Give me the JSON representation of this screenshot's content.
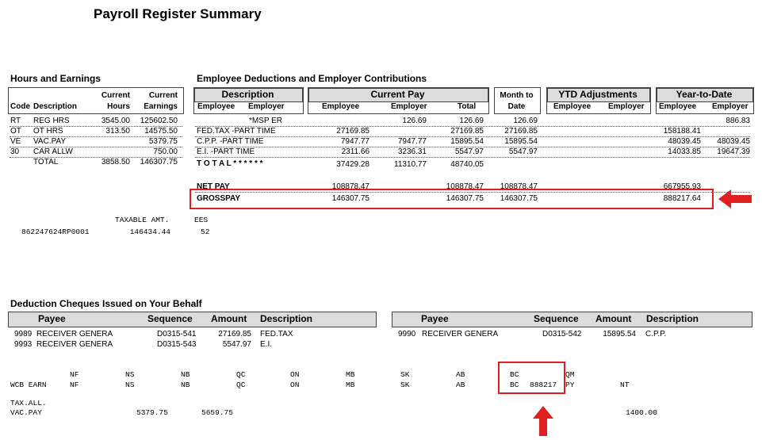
{
  "title": "Payroll Register Summary",
  "hours": {
    "heading": "Hours and Earnings",
    "col_current1": "Current",
    "col_current2": "Current",
    "col_code": "Code",
    "col_desc": "Description",
    "col_hours": "Hours",
    "col_earnings": "Earnings",
    "rows": [
      {
        "code": "RT",
        "desc": "REG HRS",
        "hours": "3545.00",
        "earn": "125602.50"
      },
      {
        "code": "OT",
        "desc": "OT HRS",
        "hours": "313.50",
        "earn": "14575.50"
      },
      {
        "code": "VE",
        "desc": "VAC.PAY",
        "hours": "",
        "earn": "5379.75"
      },
      {
        "code": "30",
        "desc": "CAR ALLW",
        "hours": "",
        "earn": "750.00"
      }
    ],
    "total": {
      "label": "TOTAL",
      "hours": "3858.50",
      "earn": "146307.75"
    }
  },
  "deductions": {
    "heading": "Employee Deductions and Employer Contributions",
    "desc_header": "Description",
    "desc_employee": "Employee",
    "desc_employer": "Employer",
    "current_pay": "Current Pay",
    "cp_employee": "Employee",
    "cp_employer": "Employer",
    "cp_total": "Total",
    "mtd1": "Month to",
    "mtd2": "Date",
    "ytd_adj": "YTD Adjustments",
    "ya_employee": "Employee",
    "ya_employer": "Employer",
    "ytd": "Year-to-Date",
    "ytd_employee": "Employee",
    "ytd_employer": "Employer",
    "rows": [
      {
        "desc": "*MSP ER",
        "emp": "",
        "er": "126.69",
        "total": "126.69",
        "mtd": "126.69",
        "ytd_emp": "",
        "ytd_er": "886.83"
      },
      {
        "desc": "FED.TAX -PART TIME",
        "emp": "27169.85",
        "er": "",
        "total": "27169.85",
        "mtd": "27169.85",
        "ytd_emp": "158188.41",
        "ytd_er": ""
      },
      {
        "desc": "C.P.P. -PART TIME",
        "emp": "7947.77",
        "er": "7947.77",
        "total": "15895.54",
        "mtd": "15895.54",
        "ytd_emp": "48039.45",
        "ytd_er": "48039.45"
      },
      {
        "desc": "E.I. -PART TIME",
        "emp": "2311.66",
        "er": "3236.31",
        "total": "5547.97",
        "mtd": "5547.97",
        "ytd_emp": "14033.85",
        "ytd_er": "19647.39"
      }
    ],
    "total": {
      "label": "T O T A L * * * * * *",
      "emp": "37429.28",
      "er": "11310.77",
      "total": "48740.05"
    },
    "netpay": {
      "label": "NET PAY",
      "emp": "108878.47",
      "total": "108878.47",
      "mtd": "108878.47",
      "ytd": "667955.93"
    },
    "grosspay": {
      "label": "GROSSPAY",
      "emp": "146307.75",
      "total": "146307.75",
      "mtd": "146307.75",
      "ytd": "888217.64"
    }
  },
  "taxable": {
    "label_amt": "TAXABLE AMT.",
    "label_ees": "EES",
    "account": "862247624RP0001",
    "amount": "146434.44",
    "ees": "52"
  },
  "cheques": {
    "heading": "Deduction Cheques Issued on Your Behalf",
    "left_headers": {
      "payee": "Payee",
      "sequence": "Sequence",
      "amount": "Amount",
      "description": "Description"
    },
    "right_headers": {
      "payee": "Payee",
      "sequence": "Sequence",
      "amount": "Amount",
      "description": "Description"
    },
    "left_rows": [
      {
        "code": "9989",
        "payee": "RECEIVER GENERA",
        "seq": "D0315-541",
        "amt": "27169.85",
        "desc": "FED.TAX"
      },
      {
        "code": "9993",
        "payee": "RECEIVER GENERA",
        "seq": "D0315-543",
        "amt": "5547.97",
        "desc": "E.I."
      }
    ],
    "right_rows": [
      {
        "code": "9990",
        "payee": "RECEIVER GENERA",
        "seq": "D0315-542",
        "amt": "15895.54",
        "desc": "C.P.P."
      }
    ]
  },
  "wcb": {
    "label": "WCB EARN",
    "provinces": [
      "NF",
      "NS",
      "NB",
      "QC",
      "ON",
      "MB",
      "SK",
      "AB",
      "BC"
    ],
    "row1_extra": "QM",
    "bc_value": "888217",
    "row2_extra": "PY",
    "nt": "NT"
  },
  "taxall": {
    "label": "TAX.ALL.",
    "vac_label": "VAC.PAY",
    "v1": "5379.75",
    "v2": "5659.75",
    "v3": "1400.00"
  },
  "colors": {
    "highlight": "#e02020",
    "header_fill": "#dcdcdc"
  }
}
